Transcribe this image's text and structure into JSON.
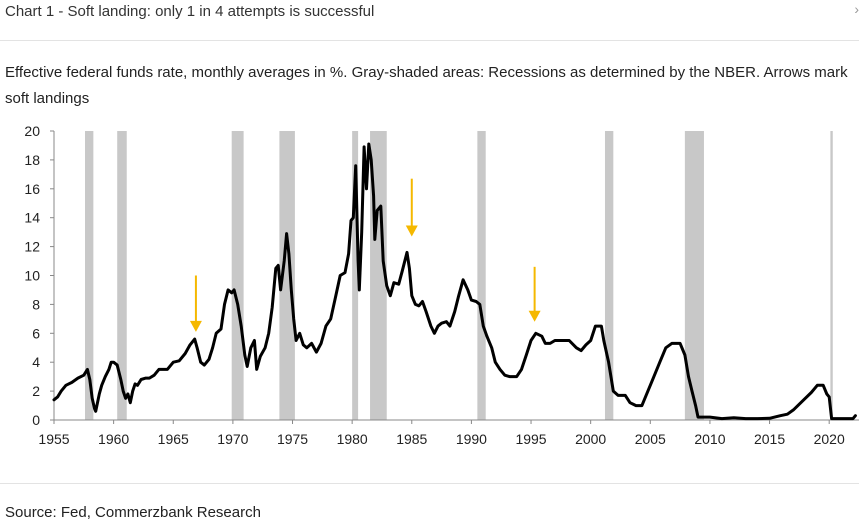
{
  "header": {
    "title": "Chart 1 - Soft landing: only 1 in 4 attempts is successful",
    "corner_icon": "expand-icon"
  },
  "subtitle": "Effective federal funds rate, monthly averages in %. Gray-shaded areas: Recessions as determined by the NBER. Arrows mark soft landings",
  "source": "Source: Fed, Commerzbank Research",
  "colors": {
    "line": "#000000",
    "recession": "#c8c8c8",
    "arrow": "#f5b800",
    "axis": "#888888"
  },
  "chart_data": {
    "type": "line",
    "title": "",
    "xlabel": "",
    "ylabel": "",
    "xlim": [
      1955,
      2022.5
    ],
    "ylim": [
      0,
      20
    ],
    "x_ticks": [
      1955,
      1960,
      1965,
      1970,
      1975,
      1980,
      1985,
      1990,
      1995,
      2000,
      2005,
      2010,
      2015,
      2020
    ],
    "y_ticks": [
      0,
      2,
      4,
      6,
      8,
      10,
      12,
      14,
      16,
      18,
      20
    ],
    "grid": false,
    "legend": "none",
    "recessions": [
      [
        1957.6,
        1958.3
      ],
      [
        1960.3,
        1961.1
      ],
      [
        1969.9,
        1970.9
      ],
      [
        1973.9,
        1975.2
      ],
      [
        1980.0,
        1980.5
      ],
      [
        1981.5,
        1982.9
      ],
      [
        1990.5,
        1991.2
      ],
      [
        2001.2,
        2001.9
      ],
      [
        2007.9,
        2009.5
      ],
      [
        2020.1,
        2020.3
      ]
    ],
    "soft_landing_arrows": [
      {
        "x": 1966.9,
        "y_top": 10.0,
        "y_bottom": 6.1
      },
      {
        "x": 1985.0,
        "y_top": 16.7,
        "y_bottom": 12.7
      },
      {
        "x": 1995.3,
        "y_top": 10.6,
        "y_bottom": 6.8
      }
    ],
    "series": [
      {
        "values": [
          [
            1955.0,
            1.4
          ],
          [
            1955.3,
            1.6
          ],
          [
            1955.6,
            2.0
          ],
          [
            1956.0,
            2.4
          ],
          [
            1956.5,
            2.6
          ],
          [
            1957.0,
            2.9
          ],
          [
            1957.5,
            3.1
          ],
          [
            1957.8,
            3.5
          ],
          [
            1958.0,
            2.8
          ],
          [
            1958.2,
            1.5
          ],
          [
            1958.4,
            0.8
          ],
          [
            1958.5,
            0.6
          ],
          [
            1958.6,
            1.0
          ],
          [
            1958.8,
            1.8
          ],
          [
            1959.0,
            2.4
          ],
          [
            1959.3,
            3.0
          ],
          [
            1959.6,
            3.5
          ],
          [
            1959.8,
            4.0
          ],
          [
            1960.0,
            4.0
          ],
          [
            1960.3,
            3.8
          ],
          [
            1960.6,
            2.8
          ],
          [
            1960.8,
            2.0
          ],
          [
            1961.0,
            1.5
          ],
          [
            1961.2,
            1.8
          ],
          [
            1961.4,
            1.2
          ],
          [
            1961.6,
            2.0
          ],
          [
            1961.8,
            2.5
          ],
          [
            1962.0,
            2.4
          ],
          [
            1962.3,
            2.8
          ],
          [
            1962.7,
            2.9
          ],
          [
            1963.0,
            2.9
          ],
          [
            1963.4,
            3.1
          ],
          [
            1963.8,
            3.5
          ],
          [
            1964.0,
            3.5
          ],
          [
            1964.5,
            3.5
          ],
          [
            1965.0,
            4.0
          ],
          [
            1965.5,
            4.1
          ],
          [
            1966.0,
            4.6
          ],
          [
            1966.4,
            5.2
          ],
          [
            1966.8,
            5.6
          ],
          [
            1967.0,
            5.0
          ],
          [
            1967.3,
            4.0
          ],
          [
            1967.6,
            3.8
          ],
          [
            1968.0,
            4.2
          ],
          [
            1968.3,
            5.0
          ],
          [
            1968.6,
            6.0
          ],
          [
            1969.0,
            6.3
          ],
          [
            1969.3,
            8.0
          ],
          [
            1969.6,
            9.0
          ],
          [
            1969.9,
            8.8
          ],
          [
            1970.1,
            9.0
          ],
          [
            1970.4,
            8.0
          ],
          [
            1970.7,
            6.5
          ],
          [
            1971.0,
            4.5
          ],
          [
            1971.2,
            3.7
          ],
          [
            1971.5,
            5.0
          ],
          [
            1971.8,
            5.5
          ],
          [
            1972.0,
            3.5
          ],
          [
            1972.3,
            4.4
          ],
          [
            1972.7,
            5.0
          ],
          [
            1973.0,
            6.0
          ],
          [
            1973.3,
            7.8
          ],
          [
            1973.6,
            10.5
          ],
          [
            1973.8,
            10.7
          ],
          [
            1974.0,
            9.0
          ],
          [
            1974.3,
            11.0
          ],
          [
            1974.5,
            12.9
          ],
          [
            1974.7,
            11.5
          ],
          [
            1974.9,
            9.0
          ],
          [
            1975.1,
            7.0
          ],
          [
            1975.3,
            5.5
          ],
          [
            1975.6,
            6.0
          ],
          [
            1975.9,
            5.2
          ],
          [
            1976.2,
            5.0
          ],
          [
            1976.6,
            5.3
          ],
          [
            1977.0,
            4.7
          ],
          [
            1977.4,
            5.3
          ],
          [
            1977.8,
            6.5
          ],
          [
            1978.2,
            7.0
          ],
          [
            1978.6,
            8.5
          ],
          [
            1979.0,
            10.0
          ],
          [
            1979.4,
            10.2
          ],
          [
            1979.7,
            11.5
          ],
          [
            1979.9,
            13.8
          ],
          [
            1980.1,
            14.0
          ],
          [
            1980.3,
            17.6
          ],
          [
            1980.5,
            11.0
          ],
          [
            1980.6,
            9.0
          ],
          [
            1980.8,
            13.0
          ],
          [
            1981.0,
            18.9
          ],
          [
            1981.2,
            16.0
          ],
          [
            1981.4,
            19.1
          ],
          [
            1981.6,
            18.0
          ],
          [
            1981.8,
            15.5
          ],
          [
            1981.9,
            12.5
          ],
          [
            1982.1,
            14.5
          ],
          [
            1982.4,
            14.8
          ],
          [
            1982.6,
            11.0
          ],
          [
            1982.9,
            9.3
          ],
          [
            1983.2,
            8.6
          ],
          [
            1983.5,
            9.5
          ],
          [
            1983.9,
            9.4
          ],
          [
            1984.2,
            10.3
          ],
          [
            1984.6,
            11.6
          ],
          [
            1984.8,
            10.5
          ],
          [
            1985.0,
            8.6
          ],
          [
            1985.3,
            8.0
          ],
          [
            1985.6,
            7.9
          ],
          [
            1985.9,
            8.2
          ],
          [
            1986.2,
            7.5
          ],
          [
            1986.6,
            6.5
          ],
          [
            1986.9,
            6.0
          ],
          [
            1987.2,
            6.5
          ],
          [
            1987.5,
            6.7
          ],
          [
            1987.9,
            6.8
          ],
          [
            1988.2,
            6.5
          ],
          [
            1988.6,
            7.5
          ],
          [
            1988.9,
            8.5
          ],
          [
            1989.3,
            9.7
          ],
          [
            1989.7,
            9.0
          ],
          [
            1990.0,
            8.3
          ],
          [
            1990.4,
            8.2
          ],
          [
            1990.7,
            8.0
          ],
          [
            1991.0,
            6.5
          ],
          [
            1991.3,
            5.8
          ],
          [
            1991.7,
            5.0
          ],
          [
            1992.0,
            4.0
          ],
          [
            1992.4,
            3.5
          ],
          [
            1992.8,
            3.1
          ],
          [
            1993.2,
            3.0
          ],
          [
            1993.8,
            3.0
          ],
          [
            1994.2,
            3.5
          ],
          [
            1994.6,
            4.5
          ],
          [
            1995.0,
            5.5
          ],
          [
            1995.4,
            6.0
          ],
          [
            1995.9,
            5.8
          ],
          [
            1996.2,
            5.3
          ],
          [
            1996.6,
            5.3
          ],
          [
            1997.0,
            5.5
          ],
          [
            1997.6,
            5.5
          ],
          [
            1998.2,
            5.5
          ],
          [
            1998.8,
            5.0
          ],
          [
            1999.2,
            4.8
          ],
          [
            1999.6,
            5.2
          ],
          [
            2000.0,
            5.5
          ],
          [
            2000.4,
            6.5
          ],
          [
            2000.9,
            6.5
          ],
          [
            2001.1,
            5.5
          ],
          [
            2001.5,
            4.0
          ],
          [
            2001.9,
            2.0
          ],
          [
            2002.3,
            1.7
          ],
          [
            2002.9,
            1.7
          ],
          [
            2003.3,
            1.2
          ],
          [
            2003.8,
            1.0
          ],
          [
            2004.3,
            1.0
          ],
          [
            2004.8,
            2.0
          ],
          [
            2005.3,
            3.0
          ],
          [
            2005.8,
            4.0
          ],
          [
            2006.3,
            5.0
          ],
          [
            2006.8,
            5.3
          ],
          [
            2007.5,
            5.3
          ],
          [
            2007.9,
            4.5
          ],
          [
            2008.2,
            3.0
          ],
          [
            2008.5,
            2.0
          ],
          [
            2008.8,
            1.0
          ],
          [
            2009.0,
            0.2
          ],
          [
            2010.0,
            0.2
          ],
          [
            2011.0,
            0.1
          ],
          [
            2012.0,
            0.15
          ],
          [
            2013.0,
            0.1
          ],
          [
            2014.0,
            0.1
          ],
          [
            2015.0,
            0.12
          ],
          [
            2015.9,
            0.3
          ],
          [
            2016.5,
            0.4
          ],
          [
            2017.0,
            0.7
          ],
          [
            2017.5,
            1.1
          ],
          [
            2018.0,
            1.5
          ],
          [
            2018.5,
            1.9
          ],
          [
            2019.0,
            2.4
          ],
          [
            2019.5,
            2.4
          ],
          [
            2019.8,
            1.8
          ],
          [
            2020.0,
            1.6
          ],
          [
            2020.2,
            0.1
          ],
          [
            2020.5,
            0.1
          ],
          [
            2021.0,
            0.1
          ],
          [
            2021.5,
            0.1
          ],
          [
            2022.0,
            0.1
          ],
          [
            2022.2,
            0.3
          ]
        ]
      }
    ]
  }
}
